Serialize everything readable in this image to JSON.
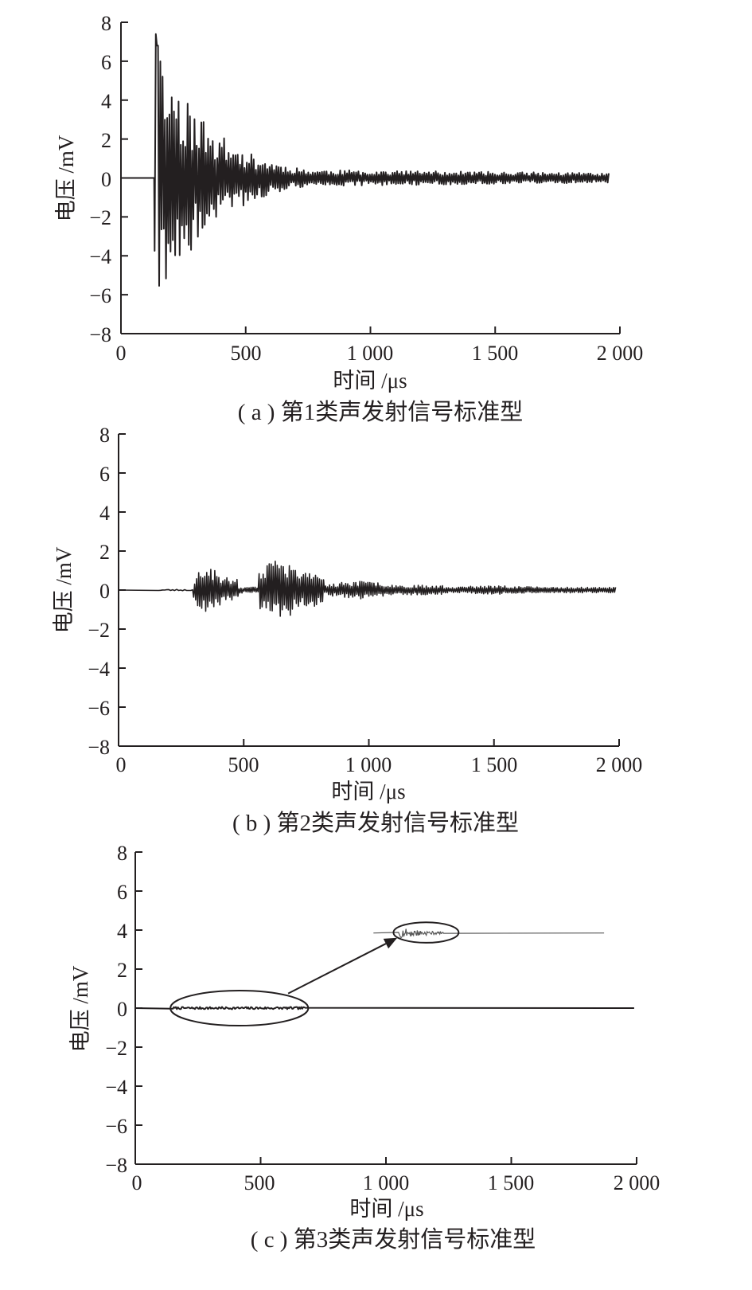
{
  "chart_data": [
    {
      "type": "line",
      "caption": "( a ) 第1类声发射信号标准型",
      "xlabel": "时间 /μs",
      "ylabel": "电压 /mV",
      "xlim": [
        0,
        2000
      ],
      "ylim": [
        -8,
        8
      ],
      "x_tick_labels": [
        "0",
        "500",
        "1 000",
        "1 500",
        "2 000"
      ],
      "y_tick_labels": [
        "8",
        "6",
        "4",
        "2",
        "0",
        "−2",
        "−4",
        "−6",
        "−8"
      ],
      "grid": false,
      "line_color": "#231f20",
      "signal": {
        "x_start": 0,
        "onset": 135,
        "x_end": 1960,
        "peak_max": 7.4,
        "peak_min": -6.8,
        "decay": 0.38,
        "residual": 0.5,
        "samples": 400,
        "seed": 11
      }
    },
    {
      "type": "line",
      "caption": "( b ) 第2类声发射信号标准型",
      "xlabel": "时间 /μs",
      "ylabel": "电压 /mV",
      "xlim": [
        0,
        2000
      ],
      "ylim": [
        -8,
        8
      ],
      "x_tick_labels": [
        "0",
        "500",
        "1 000",
        "1 500",
        "2 000"
      ],
      "y_tick_labels": [
        "8",
        "6",
        "4",
        "2",
        "0",
        "−2",
        "−4",
        "−6",
        "−8"
      ],
      "grid": false,
      "line_color": "#231f20",
      "signal": {
        "x_start": 0,
        "onset": 300,
        "x_end": 1990,
        "peak_max": 1.5,
        "peak_min": -1.9,
        "bursts": [
          {
            "start": 300,
            "end": 480,
            "amp": 1.2
          },
          {
            "start": 560,
            "end": 820,
            "amp": 1.6
          },
          {
            "start": 820,
            "end": 1300,
            "amp": 0.45
          },
          {
            "start": 1300,
            "end": 1990,
            "amp": 0.22
          }
        ],
        "samples": 420,
        "seed": 23
      }
    },
    {
      "type": "line",
      "caption": "( c ) 第3类声发射信号标准型",
      "xlabel": "时间 /μs",
      "ylabel": "电压 /mV",
      "xlim": [
        0,
        2000
      ],
      "ylim": [
        -8,
        8
      ],
      "x_tick_labels": [
        "0",
        "500",
        "1 000",
        "1 500",
        "2 000"
      ],
      "y_tick_labels": [
        "8",
        "6",
        "4",
        "2",
        "0",
        "−2",
        "−4",
        "−6",
        "−8"
      ],
      "grid": false,
      "line_color": "#231f20",
      "signal": {
        "x_start": 0,
        "x_end": 1990,
        "small_burst": {
          "start": 150,
          "end": 680,
          "amp": 0.06
        }
      },
      "inset": {
        "description_mark": "zoom",
        "source_ellipse": {
          "x": [
            140,
            690
          ],
          "y": [
            -0.9,
            0.9
          ]
        },
        "target_ellipse": {
          "x": [
            1030,
            1290
          ],
          "y": [
            3.35,
            4.4
          ]
        },
        "zoom_line": {
          "x": [
            950,
            1870
          ],
          "y": 3.85
        },
        "zoom_burst": {
          "x": [
            1050,
            1230
          ],
          "amp": 0.25
        }
      }
    }
  ]
}
